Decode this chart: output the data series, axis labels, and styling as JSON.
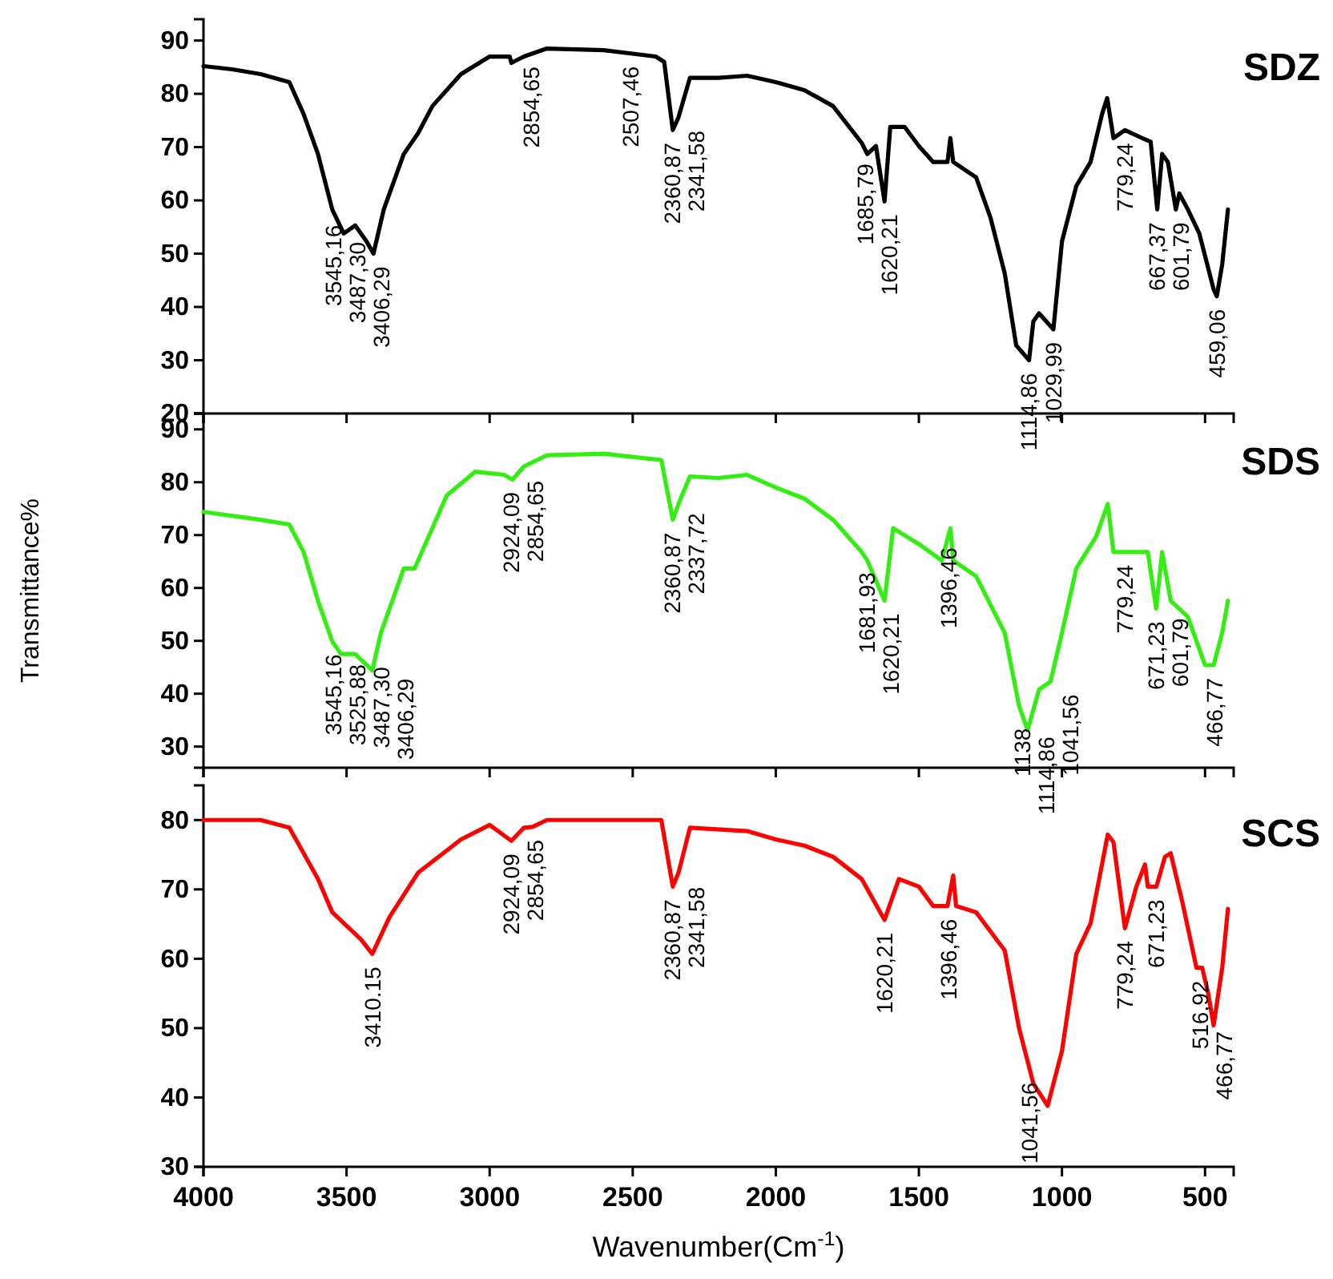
{
  "chart_data": [
    {
      "type": "line",
      "title": "SDZ",
      "xlim": [
        4000,
        400
      ],
      "xticks": [
        4000,
        3500,
        3000,
        2500,
        2000,
        1500,
        1000,
        500
      ],
      "ylim": [
        20,
        94
      ],
      "yticks": [
        20,
        30,
        40,
        50,
        60,
        70,
        80,
        90
      ],
      "tick_labels": "y",
      "x": [
        4000,
        3900,
        3800,
        3700,
        3650,
        3600,
        3550,
        3510,
        3470,
        3430,
        3406,
        3370,
        3300,
        3250,
        3200,
        3100,
        3000,
        2930,
        2924,
        2880,
        2800,
        2600,
        2420,
        2390,
        2360,
        2340,
        2300,
        2200,
        2100,
        2000,
        1900,
        1800,
        1700,
        1680,
        1650,
        1620,
        1600,
        1550,
        1500,
        1450,
        1400,
        1390,
        1380,
        1300,
        1250,
        1200,
        1160,
        1115,
        1100,
        1080,
        1030,
        1000,
        950,
        900,
        860,
        842,
        820,
        780,
        720,
        690,
        667,
        650,
        630,
        602,
        590,
        560,
        520,
        470,
        459,
        440,
        420
      ],
      "series": [
        {
          "color": "#000000",
          "values": [
            85.2,
            84.6,
            83.7,
            82.2,
            76.2,
            68.7,
            58.3,
            53.8,
            55.3,
            52.3,
            50,
            58.3,
            68.7,
            72.6,
            77.7,
            83.7,
            87,
            87,
            85.8,
            87,
            88.5,
            88.2,
            87,
            86,
            73.2,
            75.6,
            83,
            83,
            83.4,
            82.2,
            80.7,
            77.7,
            70.8,
            68.7,
            70.2,
            59.8,
            73.8,
            73.8,
            70.2,
            67.2,
            67.2,
            71.7,
            67.2,
            64.3,
            56.8,
            46.3,
            32.8,
            30,
            37.3,
            38.8,
            35.8,
            52.3,
            62.7,
            67.2,
            76.2,
            79.2,
            71.7,
            73.2,
            71.7,
            71,
            58.3,
            68.7,
            67.2,
            58.3,
            61.3,
            58.3,
            53.8,
            43.3,
            42,
            48,
            58.3
          ]
        }
      ],
      "annotations": [
        {
          "text": "3545,16",
          "x": 3545.16,
          "y": 57.8
        },
        {
          "text": "3487,30",
          "x": 3487.3,
          "y": 54.6
        },
        {
          "text": "3406,29",
          "x": 3406.29,
          "y": 50
        },
        {
          "text": "2854,65",
          "x": 2854.65,
          "y": 87.5
        },
        {
          "text": "2507,46",
          "x": 2507.46,
          "y": 87.6
        },
        {
          "text": "2360,87",
          "x": 2360.87,
          "y": 73.2
        },
        {
          "text": "2341,58",
          "x": 2341.58,
          "y": 75.5
        },
        {
          "text": "1685,79",
          "x": 1685.79,
          "y": 69.3
        },
        {
          "text": "1620,21",
          "x": 1620.21,
          "y": 59.8
        },
        {
          "text": "1114,86",
          "x": 1114.86,
          "y": 30
        },
        {
          "text": "1029,99",
          "x": 1029.99,
          "y": 35.8
        },
        {
          "text": "779,24",
          "x": 779.24,
          "y": 73.2
        },
        {
          "text": "667,37",
          "x": 667.37,
          "y": 58.3
        },
        {
          "text": "601,79",
          "x": 601.79,
          "y": 58.3
        },
        {
          "text": "459,06",
          "x": 459.06,
          "y": 42
        }
      ]
    },
    {
      "type": "line",
      "title": "SDS",
      "ylabel": "Transmittance%",
      "xlim": [
        4000,
        400
      ],
      "xticks": [
        4000,
        3500,
        3000,
        2500,
        2000,
        1500,
        1000,
        500
      ],
      "ylim": [
        26,
        93
      ],
      "yticks": [
        30,
        40,
        50,
        60,
        70,
        80,
        90
      ],
      "tick_labels": "y",
      "x": [
        4000,
        3800,
        3700,
        3650,
        3600,
        3550,
        3520,
        3470,
        3410,
        3380,
        3300,
        3262,
        3150,
        3050,
        2950,
        2920,
        2880,
        2800,
        2600,
        2400,
        2360,
        2340,
        2300,
        2200,
        2100,
        2000,
        1900,
        1800,
        1700,
        1680,
        1620,
        1590,
        1500,
        1420,
        1390,
        1380,
        1300,
        1200,
        1150,
        1120,
        1080,
        1040,
        1000,
        950,
        880,
        840,
        820,
        760,
        700,
        671,
        650,
        620,
        560,
        500,
        470,
        440,
        420
      ],
      "series": [
        {
          "color": "#33ee11",
          "values": [
            74.4,
            72.9,
            72,
            66.8,
            57.6,
            49.9,
            47.5,
            47.5,
            44.4,
            51.5,
            63.7,
            63.7,
            77.5,
            82,
            81.4,
            80.5,
            83,
            85.1,
            85.4,
            84.2,
            72.9,
            75.9,
            81.1,
            80.8,
            81.4,
            79,
            76.9,
            72.9,
            66.8,
            65.2,
            57.6,
            71.3,
            68.3,
            65.2,
            71.3,
            65.2,
            62.2,
            51.5,
            37.7,
            33.1,
            40.8,
            42.3,
            51.5,
            63.7,
            69.8,
            75.9,
            66.8,
            66.8,
            66.8,
            56.1,
            66.8,
            57.6,
            54.5,
            45.4,
            45.4,
            51.5,
            57.6
          ]
        }
      ],
      "annotations": [
        {
          "text": "3545,16",
          "x": 3545.16,
          "y": 49.9
        },
        {
          "text": "3525,88",
          "x": 3525.88,
          "y": 48
        },
        {
          "text": "3487,30",
          "x": 3487.3,
          "y": 47.5
        },
        {
          "text": "3406,29",
          "x": 3406.29,
          "y": 45.3
        },
        {
          "text": "2924,09",
          "x": 2924.09,
          "y": 80.6
        },
        {
          "text": "2854,65",
          "x": 2854.65,
          "y": 82.7
        },
        {
          "text": "2360,87",
          "x": 2360.87,
          "y": 72.9
        },
        {
          "text": "2337,72",
          "x": 2337.72,
          "y": 76.6
        },
        {
          "text": "1681,93",
          "x": 1681.93,
          "y": 65.4
        },
        {
          "text": "1620,21",
          "x": 1620.21,
          "y": 57.6
        },
        {
          "text": "1396,46",
          "x": 1396.46,
          "y": 70.1
        },
        {
          "text": "1138",
          "x": 1138,
          "y": 35.9
        },
        {
          "text": "1114,86",
          "x": 1114.86,
          "y": 34.3
        },
        {
          "text": "1041,56",
          "x": 1041.56,
          "y": 42.3
        },
        {
          "text": "779,24",
          "x": 779.24,
          "y": 66.8
        },
        {
          "text": "671,23",
          "x": 671.23,
          "y": 56.1
        },
        {
          "text": "601,79",
          "x": 601.79,
          "y": 56.7
        },
        {
          "text": "466,77",
          "x": 466.77,
          "y": 45.4
        }
      ]
    },
    {
      "type": "line",
      "title": "SCS",
      "xlabel": "Wavenumber(Cm$^{-1}$)",
      "xlim": [
        4000,
        400
      ],
      "xticks": [
        4000,
        3500,
        3000,
        2500,
        2000,
        1500,
        1000,
        500
      ],
      "ylim": [
        30,
        85
      ],
      "yticks": [
        30,
        40,
        50,
        60,
        70,
        80
      ],
      "x": [
        4000,
        3800,
        3700,
        3600,
        3550,
        3450,
        3410,
        3350,
        3250,
        3100,
        3000,
        2924,
        2880,
        2850,
        2800,
        2400,
        2360,
        2340,
        2300,
        2100,
        2000,
        1900,
        1800,
        1700,
        1620,
        1570,
        1500,
        1450,
        1400,
        1380,
        1370,
        1300,
        1200,
        1150,
        1100,
        1050,
        1000,
        950,
        900,
        840,
        820,
        780,
        740,
        710,
        700,
        670,
        640,
        620,
        580,
        530,
        510,
        490,
        470,
        440,
        420
      ],
      "series": [
        {
          "color": "#ff0000",
          "values": [
            80,
            80,
            78.9,
            71.5,
            66.7,
            62.8,
            60.7,
            66,
            72.4,
            77.2,
            79.3,
            77,
            78.9,
            79,
            80,
            80,
            70.4,
            72.4,
            78.9,
            78.4,
            77.2,
            76.3,
            74.7,
            71.5,
            65.6,
            71.5,
            70.4,
            67.6,
            67.6,
            72,
            67.6,
            66.7,
            61.2,
            50,
            42,
            38.8,
            46.7,
            60.7,
            65.1,
            77.9,
            76.8,
            64.4,
            70.4,
            73.6,
            70.4,
            70.4,
            74.7,
            75.2,
            68.3,
            58.7,
            58.7,
            55.2,
            50.4,
            58.7,
            67.2
          ]
        }
      ],
      "annotations": [
        {
          "text": "3410.15",
          "x": 3410.15,
          "y": 60.7
        },
        {
          "text": "2924,09",
          "x": 2924.09,
          "y": 77
        },
        {
          "text": "2854,65",
          "x": 2854.65,
          "y": 79
        },
        {
          "text": "2360,87",
          "x": 2360.87,
          "y": 70.4
        },
        {
          "text": "2341,58",
          "x": 2341.58,
          "y": 72.2
        },
        {
          "text": "1620,21",
          "x": 1620.21,
          "y": 65.6
        },
        {
          "text": "1396,46",
          "x": 1396.46,
          "y": 67.6
        },
        {
          "text": "1041,56",
          "x": 1041.56,
          "y": 40.2
        },
        {
          "text": "779,24",
          "x": 779.24,
          "y": 64.4
        },
        {
          "text": "671,23",
          "x": 671.23,
          "y": 70.4
        },
        {
          "text": "516,92",
          "x": 516.92,
          "y": 58.7
        },
        {
          "text": "466,77",
          "x": 466.77,
          "y": 51.4
        }
      ]
    }
  ]
}
